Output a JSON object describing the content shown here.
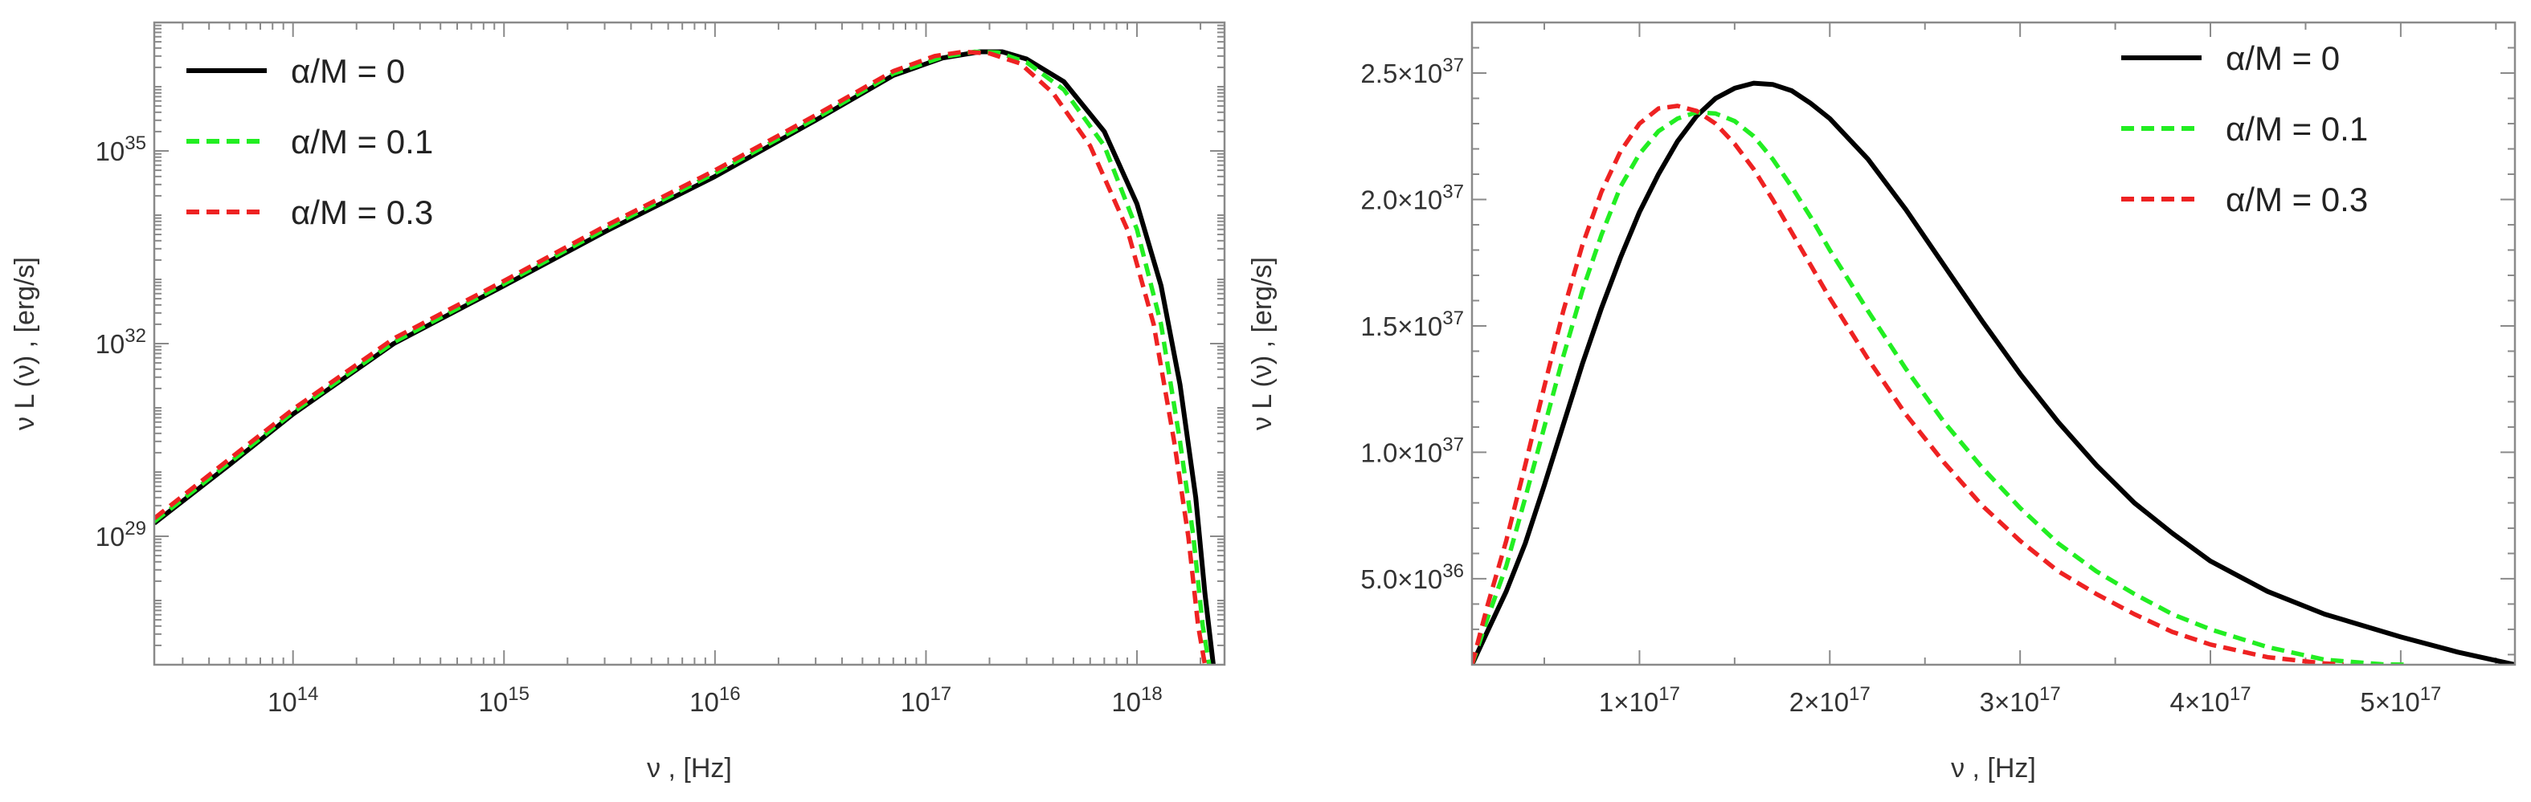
{
  "chart_data": [
    {
      "type": "line",
      "xscale": "log",
      "yscale": "log",
      "xlabel": "ν ,  [Hz]",
      "ylabel": "ν L (ν) ,  [erg/s]",
      "xlim": [
        22000000000000.0,
        2.6e+18
      ],
      "ylim": [
        1e+27,
        1e+37
      ],
      "xticks": [
        {
          "value": 100000000000000.0,
          "base": "10",
          "exp": "14"
        },
        {
          "value": 1000000000000000.0,
          "base": "10",
          "exp": "15"
        },
        {
          "value": 1e+16,
          "base": "10",
          "exp": "16"
        },
        {
          "value": 1e+17,
          "base": "10",
          "exp": "17"
        },
        {
          "value": 1e+18,
          "base": "10",
          "exp": "18"
        }
      ],
      "yticks": [
        {
          "value": 1e+29,
          "base": "10",
          "exp": "29"
        },
        {
          "value": 1e+32,
          "base": "10",
          "exp": "32"
        },
        {
          "value": 1e+35,
          "base": "10",
          "exp": "35"
        }
      ],
      "legend_position": "top-left",
      "series": [
        {
          "name": "α/M = 0",
          "color": "#000000",
          "dash": "solid",
          "x": [
            22000000000000.0,
            50000000000000.0,
            100000000000000.0,
            300000000000000.0,
            1000000000000000.0,
            3000000000000000.0,
            1e+16,
            3e+16,
            7e+16,
            1.2e+17,
            1.8e+17,
            2.3e+17,
            3e+17,
            4.5e+17,
            7e+17,
            1e+18,
            1.3e+18,
            1.6e+18,
            1.9e+18,
            2.1e+18,
            2.3e+18
          ],
          "y": [
            1.6e+29,
            1.3e+30,
            8e+30,
            1e+32,
            8e+32,
            5.5e+33,
            4e+34,
            3e+35,
            1.5e+36,
            2.8e+36,
            3.5e+36,
            3.5e+36,
            2.7e+36,
            1.2e+36,
            2e+35,
            1.5e+34,
            8e+32,
            2.3e+31,
            4e+29,
            1.3e+28,
            1e+27
          ]
        },
        {
          "name": "α/M = 0.1",
          "color": "#22ee22",
          "dash": "dashed",
          "x": [
            22000000000000.0,
            50000000000000.0,
            100000000000000.0,
            300000000000000.0,
            1000000000000000.0,
            3000000000000000.0,
            1e+16,
            3e+16,
            7e+16,
            1.2e+17,
            1.7e+17,
            2.2e+17,
            3e+17,
            4.5e+17,
            7e+17,
            1e+18,
            1.3e+18,
            1.6e+18,
            1.85e+18,
            2.05e+18,
            2.2e+18
          ],
          "y": [
            1.7e+29,
            1.4e+30,
            8.5e+30,
            1.05e+32,
            8.5e+32,
            6e+33,
            4.5e+34,
            3.2e+35,
            1.6e+36,
            2.9e+36,
            3.5e+36,
            3.4e+36,
            2.4e+36,
            9e+35,
            1.2e+35,
            6e+33,
            2e+32,
            3e+30,
            1e+29,
            4e+27,
            1e+27
          ]
        },
        {
          "name": "α/M = 0.3",
          "color": "#ee2222",
          "dash": "dashed",
          "x": [
            22000000000000.0,
            50000000000000.0,
            100000000000000.0,
            300000000000000.0,
            1000000000000000.0,
            3000000000000000.0,
            1e+16,
            3e+16,
            7e+16,
            1.1e+17,
            1.5e+17,
            2e+17,
            2.8e+17,
            4e+17,
            6e+17,
            9e+17,
            1.2e+18,
            1.5e+18,
            1.75e+18,
            1.95e+18,
            2.1e+18
          ],
          "y": [
            1.9e+29,
            1.6e+30,
            9.5e+30,
            1.2e+32,
            9.5e+32,
            6.7e+33,
            5e+34,
            3.6e+35,
            1.75e+36,
            3e+36,
            3.5e+36,
            3.3e+36,
            2.3e+36,
            8e+35,
            1.2e+35,
            6e+33,
            2e+32,
            3e+30,
            1e+29,
            4e+27,
            1e+27
          ]
        }
      ]
    },
    {
      "type": "line",
      "xscale": "linear",
      "yscale": "linear",
      "xlabel": "ν ,  [Hz]",
      "ylabel": "ν L (ν) ,  [erg/s]",
      "xlim": [
        1.2e+16,
        5.6e+17
      ],
      "ylim": [
        1.6e+36,
        2.7e+37
      ],
      "xticks": [
        {
          "value": 1e+17,
          "mant": "1",
          "base": "10",
          "exp": "17"
        },
        {
          "value": 2e+17,
          "mant": "2",
          "base": "10",
          "exp": "17"
        },
        {
          "value": 3e+17,
          "mant": "3",
          "base": "10",
          "exp": "17"
        },
        {
          "value": 4e+17,
          "mant": "4",
          "base": "10",
          "exp": "17"
        },
        {
          "value": 5e+17,
          "mant": "5",
          "base": "10",
          "exp": "17"
        }
      ],
      "yticks": [
        {
          "value": 5e+36,
          "mant": "5.0",
          "base": "10",
          "exp": "36"
        },
        {
          "value": 1e+37,
          "mant": "1.0",
          "base": "10",
          "exp": "37"
        },
        {
          "value": 1.5e+37,
          "mant": "1.5",
          "base": "10",
          "exp": "37"
        },
        {
          "value": 2e+37,
          "mant": "2.0",
          "base": "10",
          "exp": "37"
        },
        {
          "value": 2.5e+37,
          "mant": "2.5",
          "base": "10",
          "exp": "37"
        }
      ],
      "legend_position": "top-right",
      "series": [
        {
          "name": "α/M = 0",
          "color": "#000000",
          "dash": "solid",
          "x": [
            1.2e+16,
            2e+16,
            3e+16,
            4e+16,
            5e+16,
            6e+16,
            7e+16,
            8e+16,
            9e+16,
            1e+17,
            1.1e+17,
            1.2e+17,
            1.3e+17,
            1.4e+17,
            1.5e+17,
            1.6e+17,
            1.7e+17,
            1.8e+17,
            1.9e+17,
            2e+17,
            2.2e+17,
            2.4e+17,
            2.6e+17,
            2.8e+17,
            3e+17,
            3.2e+17,
            3.4e+17,
            3.6e+17,
            3.8e+17,
            4e+17,
            4.3e+17,
            4.6e+17,
            5e+17,
            5.3e+17,
            5.6e+17
          ],
          "y": [
            1.6e+36,
            2.9e+36,
            4.5e+36,
            6.4e+36,
            8.7e+36,
            1.11e+37,
            1.35e+37,
            1.57e+37,
            1.77e+37,
            1.95e+37,
            2.1e+37,
            2.23e+37,
            2.33e+37,
            2.4e+37,
            2.44e+37,
            2.46e+37,
            2.455e+37,
            2.43e+37,
            2.38e+37,
            2.32e+37,
            2.16e+37,
            1.96e+37,
            1.74e+37,
            1.52e+37,
            1.31e+37,
            1.12e+37,
            9.5e+36,
            8e+36,
            6.8e+36,
            5.7e+36,
            4.5e+36,
            3.6e+36,
            2.7e+36,
            2.1e+36,
            1.6e+36
          ]
        },
        {
          "name": "α/M = 0.1",
          "color": "#22ee22",
          "dash": "dashed",
          "x": [
            1.2e+16,
            2e+16,
            3e+16,
            4e+16,
            5e+16,
            6e+16,
            7e+16,
            8e+16,
            9e+16,
            1e+17,
            1.1e+17,
            1.2e+17,
            1.3e+17,
            1.4e+17,
            1.5e+17,
            1.6e+17,
            1.7e+17,
            1.8e+17,
            1.9e+17,
            2e+17,
            2.2e+17,
            2.4e+17,
            2.6e+17,
            2.8e+17,
            3e+17,
            3.2e+17,
            3.4e+17,
            3.6e+17,
            3.8e+17,
            4e+17,
            4.3e+17,
            4.6e+17,
            4.9e+17,
            5.05e+17
          ],
          "y": [
            1.6e+36,
            3.4e+36,
            5.5e+36,
            8.2e+36,
            1.1e+37,
            1.38e+37,
            1.64e+37,
            1.86e+37,
            2.05e+37,
            2.18e+37,
            2.27e+37,
            2.32e+37,
            2.345e+37,
            2.34e+37,
            2.31e+37,
            2.25e+37,
            2.16e+37,
            2.05e+37,
            1.93e+37,
            1.8e+37,
            1.56e+37,
            1.33e+37,
            1.12e+37,
            9.4e+36,
            7.8e+36,
            6.4e+36,
            5.3e+36,
            4.4e+36,
            3.6e+36,
            3e+36,
            2.3e+36,
            1.8e+36,
            1.62e+36,
            1.6e+36
          ]
        },
        {
          "name": "α/M = 0.3",
          "color": "#ee2222",
          "dash": "dashed",
          "x": [
            1.2e+16,
            2e+16,
            3e+16,
            4e+16,
            5e+16,
            6e+16,
            7e+16,
            8e+16,
            9e+16,
            1e+17,
            1.1e+17,
            1.2e+17,
            1.3e+17,
            1.4e+17,
            1.5e+17,
            1.6e+17,
            1.7e+17,
            1.8e+17,
            1.9e+17,
            2e+17,
            2.2e+17,
            2.4e+17,
            2.6e+17,
            2.8e+17,
            3e+17,
            3.2e+17,
            3.4e+17,
            3.6e+17,
            3.8e+17,
            4e+17,
            4.3e+17,
            4.6e+17,
            4.7e+17
          ],
          "y": [
            1.6e+36,
            3.9e+36,
            6.5e+36,
            9.5e+36,
            1.26e+37,
            1.56e+37,
            1.82e+37,
            2.03e+37,
            2.19e+37,
            2.3e+37,
            2.36e+37,
            2.37e+37,
            2.35e+37,
            2.3e+37,
            2.22e+37,
            2.12e+37,
            2e+37,
            1.87e+37,
            1.74e+37,
            1.61e+37,
            1.37e+37,
            1.15e+37,
            9.6e+36,
            7.9e+36,
            6.5e+36,
            5.3e+36,
            4.4e+36,
            3.6e+36,
            2.9e+36,
            2.4e+36,
            1.9e+36,
            1.65e+36,
            1.6e+36
          ]
        }
      ]
    }
  ]
}
